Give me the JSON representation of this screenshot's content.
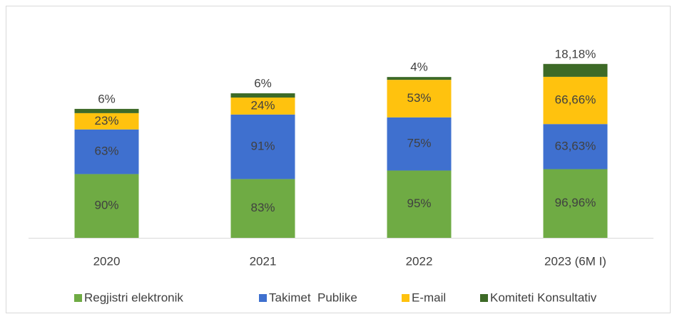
{
  "chart_data": {
    "type": "stacked_bar",
    "categories": [
      "2020",
      "2021",
      "2022",
      "2023 (6M I)"
    ],
    "series": [
      {
        "name": "Regjistri elektronik",
        "color": "#6fab44",
        "values": [
          90,
          83,
          95,
          96.96
        ],
        "value_labels": [
          "90%",
          "83%",
          "95%",
          "96,96%"
        ]
      },
      {
        "name": "Takimet  Publike",
        "color": "#3f70cf",
        "values": [
          63,
          91,
          75,
          63.63
        ],
        "value_labels": [
          "63%",
          "91%",
          "75%",
          "63,63%"
        ]
      },
      {
        "name": "E-mail",
        "color": "#ffc20e",
        "values": [
          23,
          24,
          53,
          66.66
        ],
        "value_labels": [
          "23%",
          "24%",
          "53%",
          "66,66%"
        ]
      },
      {
        "name": "Komiteti Konsultativ",
        "color": "#3d6a27",
        "values": [
          6,
          6,
          4,
          18.18
        ],
        "value_labels": [
          "6%",
          "6%",
          "4%",
          "18,18%"
        ]
      }
    ],
    "legend": "bottom"
  }
}
